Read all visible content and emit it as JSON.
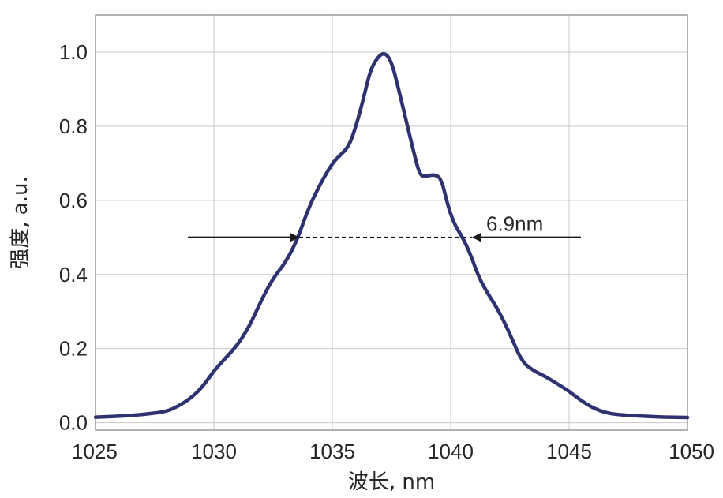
{
  "chart_data": {
    "type": "line",
    "title": "",
    "xlabel": "波长, nm",
    "ylabel": "强度, a.u.",
    "xlim": [
      1025,
      1050
    ],
    "ylim": [
      -0.02,
      1.1
    ],
    "grid": true,
    "x_ticks": [
      1025,
      1030,
      1035,
      1040,
      1045,
      1050
    ],
    "y_ticks": [
      0.0,
      0.2,
      0.4,
      0.6,
      0.8,
      1.0
    ],
    "x_tick_labels": [
      "1025",
      "1030",
      "1035",
      "1040",
      "1045",
      "1050"
    ],
    "y_tick_labels": [
      "0.0",
      "0.2",
      "0.4",
      "0.6",
      "0.8",
      "1.0"
    ],
    "series": [
      {
        "name": "",
        "color": "#2e3270",
        "x": [
          1025,
          1026,
          1027,
          1028,
          1028.5,
          1029,
          1029.5,
          1030,
          1030.5,
          1031,
          1031.5,
          1032,
          1032.5,
          1033,
          1033.5,
          1034,
          1034.5,
          1035,
          1035.3,
          1035.7,
          1036,
          1036.3,
          1036.6,
          1036.9,
          1037.2,
          1037.5,
          1037.8,
          1038.1,
          1038.4,
          1038.7,
          1039,
          1039.3,
          1039.6,
          1039.9,
          1040.2,
          1040.5,
          1040.8,
          1041.2,
          1041.6,
          1042,
          1042.5,
          1043,
          1043.5,
          1044,
          1044.5,
          1045,
          1045.5,
          1046,
          1046.5,
          1047,
          1048,
          1049,
          1050
        ],
        "y": [
          0.015,
          0.017,
          0.022,
          0.03,
          0.045,
          0.065,
          0.095,
          0.14,
          0.175,
          0.21,
          0.26,
          0.33,
          0.39,
          0.43,
          0.49,
          0.58,
          0.645,
          0.7,
          0.72,
          0.745,
          0.8,
          0.87,
          0.95,
          0.985,
          1.0,
          0.975,
          0.9,
          0.82,
          0.74,
          0.665,
          0.665,
          0.67,
          0.66,
          0.58,
          0.53,
          0.5,
          0.46,
          0.39,
          0.345,
          0.305,
          0.24,
          0.165,
          0.14,
          0.125,
          0.105,
          0.085,
          0.06,
          0.04,
          0.028,
          0.022,
          0.018,
          0.015,
          0.014
        ]
      }
    ],
    "annotations": [
      {
        "text": "6.9nm",
        "type": "fwhm",
        "y": 0.5,
        "x_left": 1033.6,
        "x_right": 1040.9,
        "arrow_left_from": 1028.9,
        "arrow_right_from": 1045.5,
        "label_x": 1041.5,
        "label_y": 0.53
      }
    ]
  }
}
